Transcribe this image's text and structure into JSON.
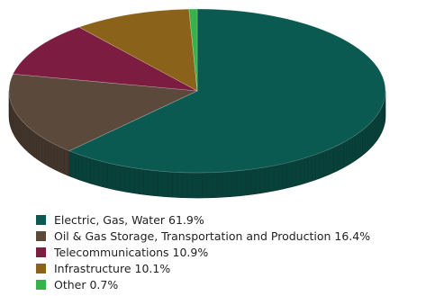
{
  "chart_data": {
    "type": "pie",
    "style": "3d",
    "legend_position": "bottom",
    "slices": [
      {
        "label": "Electric, Gas, Water 61.9%",
        "value": 61.9,
        "color": "#0b5a51"
      },
      {
        "label": "Oil & Gas Storage, Transportation and Production 16.4%",
        "value": 16.4,
        "color": "#5b4a3c"
      },
      {
        "label": "Telecommunications 10.9%",
        "value": 10.9,
        "color": "#7b1c40"
      },
      {
        "label": "Infrastructure 10.1%",
        "value": 10.1,
        "color": "#8a6219"
      },
      {
        "label": "Other 0.7%",
        "value": 0.7,
        "color": "#35b34a"
      }
    ]
  }
}
